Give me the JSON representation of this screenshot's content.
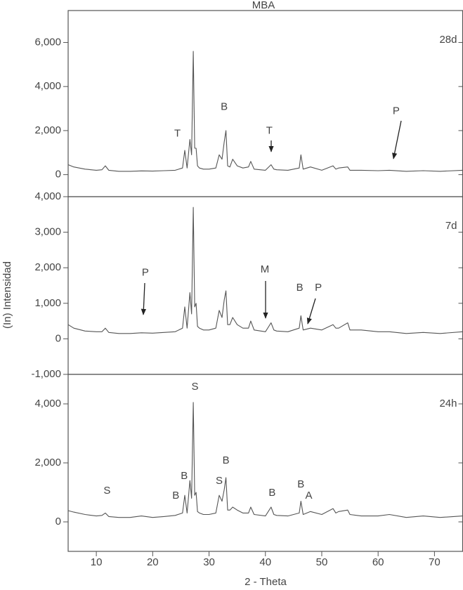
{
  "title": "MBA",
  "x_label": "2 - Theta",
  "y_label": "(In) Intensidad",
  "chart_data": [
    {
      "type": "line",
      "label": "28d",
      "color": "#555555",
      "xlim": [
        5,
        75
      ],
      "ylim": [
        -1000,
        7450
      ],
      "yticks": [
        0,
        {
          "value": 2000,
          "label": "2,000"
        },
        {
          "value": 4000,
          "label": "4,000"
        },
        {
          "value": 6000,
          "label": "6,000"
        }
      ],
      "x": [
        5,
        6,
        8,
        10,
        11,
        11.6,
        12.2,
        14,
        16,
        18,
        20,
        22,
        24,
        25.3,
        25.7,
        26.1,
        26.6,
        26.9,
        27.2,
        27.45,
        27.7,
        27.95,
        28.3,
        29,
        30,
        31.2,
        31.8,
        32.3,
        32.7,
        33.0,
        33.3,
        33.7,
        34.2,
        35,
        36,
        37,
        37.4,
        38,
        40,
        41,
        41.5,
        42,
        44,
        46,
        46.3,
        46.7,
        48,
        50,
        52,
        52.5,
        53,
        54.6,
        55,
        57,
        60,
        62,
        65,
        68,
        71,
        75
      ],
      "values": [
        450,
        350,
        250,
        200,
        220,
        400,
        200,
        150,
        150,
        170,
        160,
        180,
        200,
        300,
        1100,
        300,
        1600,
        900,
        5600,
        1200,
        1200,
        400,
        300,
        250,
        250,
        300,
        900,
        700,
        1500,
        2000,
        400,
        350,
        700,
        400,
        300,
        350,
        600,
        250,
        200,
        450,
        250,
        220,
        200,
        300,
        900,
        250,
        350,
        200,
        400,
        250,
        300,
        350,
        200,
        200,
        180,
        200,
        150,
        180,
        150,
        200
      ],
      "annotations": [
        {
          "text": "T",
          "x": 24.4,
          "y": 1850
        },
        {
          "text": "B",
          "x": 32.7,
          "y": 3070
        },
        {
          "text": "T",
          "x": 40.7,
          "y": 1980
        },
        {
          "text": "P",
          "x": 63.2,
          "y": 2880
        }
      ]
    },
    {
      "type": "line",
      "label": "7d",
      "color": "#555555",
      "xlim": [
        5,
        75
      ],
      "ylim": [
        -1000,
        4000
      ],
      "yticks": [
        {
          "value": -1000,
          "label": "-1,000"
        },
        0,
        {
          "value": 1000,
          "label": "1,000"
        },
        {
          "value": 2000,
          "label": "2,000"
        },
        {
          "value": 3000,
          "label": "3,000"
        },
        {
          "value": 4000,
          "label": "4,000"
        }
      ],
      "x": [
        5,
        6,
        8,
        10,
        11,
        11.6,
        12.2,
        14,
        16,
        18,
        20,
        22,
        24,
        25.3,
        25.7,
        26.1,
        26.6,
        26.9,
        27.2,
        27.45,
        27.7,
        27.95,
        28.3,
        29,
        30,
        31.2,
        31.8,
        32.3,
        32.7,
        33.0,
        33.3,
        33.7,
        34.2,
        35,
        36,
        37,
        37.4,
        38,
        40,
        41,
        41.5,
        42,
        44,
        46,
        46.3,
        46.7,
        48,
        50,
        52,
        52.5,
        53,
        54.6,
        55,
        57,
        60,
        62,
        65,
        68,
        71,
        75
      ],
      "values": [
        400,
        300,
        220,
        200,
        200,
        300,
        180,
        150,
        150,
        170,
        160,
        180,
        200,
        300,
        900,
        300,
        1300,
        700,
        3700,
        900,
        1000,
        350,
        300,
        250,
        250,
        300,
        800,
        600,
        1100,
        1350,
        400,
        400,
        600,
        400,
        300,
        300,
        500,
        250,
        200,
        450,
        250,
        220,
        200,
        300,
        650,
        250,
        300,
        250,
        400,
        300,
        300,
        450,
        250,
        250,
        200,
        200,
        150,
        180,
        150,
        200
      ],
      "annotations": [
        {
          "text": "P",
          "x": 18.7,
          "y": 1860
        },
        {
          "text": "M",
          "x": 39.9,
          "y": 1940
        },
        {
          "text": "B",
          "x": 46.1,
          "y": 1430
        },
        {
          "text": "P",
          "x": 49.4,
          "y": 1430
        }
      ]
    },
    {
      "type": "line",
      "label": "24h",
      "color": "#555555",
      "xlim": [
        5,
        75
      ],
      "ylim": [
        -1000,
        5000
      ],
      "xticks": [
        10,
        20,
        30,
        40,
        50,
        60,
        70
      ],
      "yticks": [
        0,
        {
          "value": 2000,
          "label": "2,000"
        },
        {
          "value": 4000,
          "label": "4,000"
        }
      ],
      "x": [
        5,
        6,
        8,
        10,
        11,
        11.6,
        12.2,
        14,
        16,
        18,
        20,
        22,
        24,
        25.3,
        25.7,
        26.1,
        26.6,
        26.9,
        27.2,
        27.45,
        27.7,
        27.95,
        28.3,
        29,
        30,
        31.2,
        31.8,
        32.3,
        32.7,
        33.0,
        33.3,
        33.7,
        34.2,
        35,
        36,
        37,
        37.4,
        38,
        40,
        41,
        41.5,
        42,
        44,
        46,
        46.3,
        46.7,
        48,
        50,
        52,
        52.5,
        53,
        54.6,
        55,
        57,
        60,
        62,
        65,
        68,
        71,
        75
      ],
      "values": [
        380,
        330,
        250,
        200,
        220,
        300,
        180,
        150,
        150,
        200,
        150,
        180,
        220,
        300,
        900,
        300,
        1400,
        800,
        4050,
        900,
        1000,
        350,
        300,
        250,
        250,
        300,
        900,
        700,
        1100,
        1500,
        400,
        400,
        500,
        400,
        300,
        300,
        500,
        250,
        200,
        500,
        250,
        220,
        200,
        300,
        700,
        250,
        350,
        250,
        450,
        300,
        350,
        400,
        250,
        200,
        200,
        250,
        150,
        200,
        150,
        200
      ],
      "annotations": [
        {
          "text": "S",
          "x": 11.9,
          "y": 1050
        },
        {
          "text": "S",
          "x": 27.5,
          "y": 4570
        },
        {
          "text": "B",
          "x": 24.1,
          "y": 880
        },
        {
          "text": "B",
          "x": 25.6,
          "y": 1550
        },
        {
          "text": "S",
          "x": 31.8,
          "y": 1380
        },
        {
          "text": "B",
          "x": 33.0,
          "y": 2070
        },
        {
          "text": "B",
          "x": 41.2,
          "y": 980
        },
        {
          "text": "B",
          "x": 46.3,
          "y": 1260
        },
        {
          "text": "A",
          "x": 47.7,
          "y": 880
        }
      ]
    }
  ]
}
